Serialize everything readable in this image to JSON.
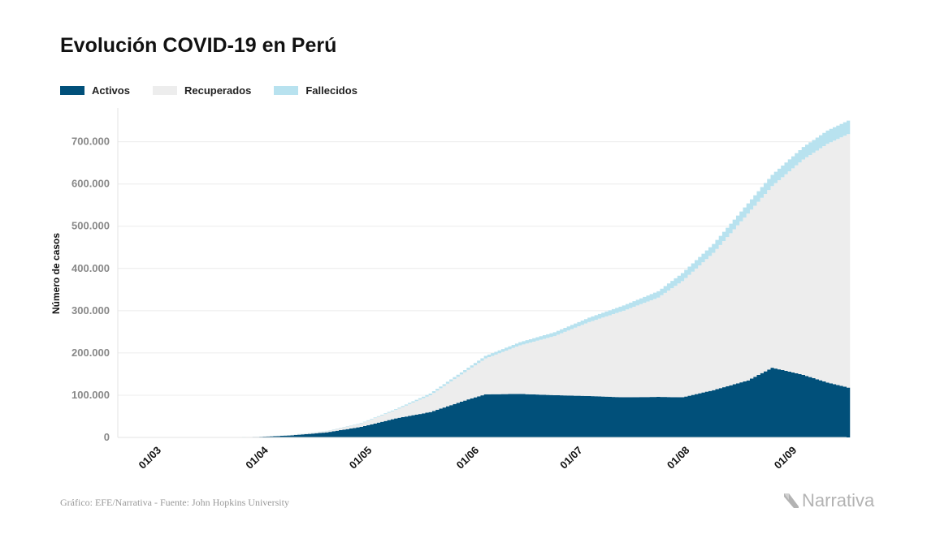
{
  "chart_data": {
    "type": "area",
    "title": "Evolución COVID-19 en Perú",
    "ylabel": "Número de casos",
    "xlabel": "",
    "ylim": [
      0,
      780000
    ],
    "yticks": [
      0,
      100000,
      200000,
      300000,
      400000,
      500000,
      600000,
      700000
    ],
    "ytick_labels": [
      "0",
      "100.000",
      "200.000",
      "300.000",
      "400.000",
      "500.000",
      "600.000",
      "700.000"
    ],
    "x_start_date": "2020-02-20",
    "x_end_date": "2020-09-18",
    "xtick_labels": [
      "01/03",
      "01/04",
      "01/05",
      "01/06",
      "01/07",
      "01/08",
      "01/09"
    ],
    "xtick_dates": [
      "2020-03-01",
      "2020-04-01",
      "2020-05-01",
      "2020-06-01",
      "2020-07-01",
      "2020-08-01",
      "2020-09-01"
    ],
    "stacked": true,
    "grid": "horizontal",
    "legend_position": "top-left",
    "series": [
      {
        "name": "Activos",
        "color": "#01507a",
        "x": [
          "2020-03-06",
          "2020-03-20",
          "2020-03-31",
          "2020-04-10",
          "2020-04-20",
          "2020-04-30",
          "2020-05-10",
          "2020-05-20",
          "2020-05-31",
          "2020-06-05",
          "2020-06-15",
          "2020-06-25",
          "2020-07-05",
          "2020-07-15",
          "2020-07-25",
          "2020-08-01",
          "2020-08-10",
          "2020-08-20",
          "2020-08-27",
          "2020-09-05",
          "2020-09-12",
          "2020-09-18"
        ],
        "values": [
          0,
          500,
          1200,
          5000,
          12000,
          25000,
          45000,
          60000,
          90000,
          102000,
          103000,
          100000,
          98000,
          95000,
          96000,
          95000,
          112000,
          135000,
          165000,
          148000,
          130000,
          118000
        ]
      },
      {
        "name": "Recuperados",
        "color": "#ededed",
        "x": [
          "2020-03-06",
          "2020-03-20",
          "2020-03-31",
          "2020-04-10",
          "2020-04-20",
          "2020-04-30",
          "2020-05-10",
          "2020-05-20",
          "2020-05-31",
          "2020-06-05",
          "2020-06-15",
          "2020-06-25",
          "2020-07-05",
          "2020-07-15",
          "2020-07-25",
          "2020-08-01",
          "2020-08-10",
          "2020-08-20",
          "2020-08-27",
          "2020-09-05",
          "2020-09-12",
          "2020-09-18"
        ],
        "values": [
          0,
          0,
          200,
          1000,
          3000,
          8000,
          20000,
          40000,
          70000,
          85000,
          115000,
          140000,
          175000,
          205000,
          235000,
          275000,
          325000,
          395000,
          430000,
          510000,
          565000,
          600000
        ]
      },
      {
        "name": "Fallecidos",
        "color": "#b8e2ef",
        "x": [
          "2020-03-06",
          "2020-03-20",
          "2020-03-31",
          "2020-04-10",
          "2020-04-20",
          "2020-04-30",
          "2020-05-10",
          "2020-05-20",
          "2020-05-31",
          "2020-06-05",
          "2020-06-15",
          "2020-06-25",
          "2020-07-05",
          "2020-07-15",
          "2020-07-25",
          "2020-08-01",
          "2020-08-10",
          "2020-08-20",
          "2020-08-27",
          "2020-09-05",
          "2020-09-12",
          "2020-09-18"
        ],
        "values": [
          0,
          0,
          50,
          200,
          500,
          1000,
          2000,
          4000,
          5000,
          6000,
          7500,
          9000,
          10500,
          12500,
          15000,
          19000,
          21000,
          24000,
          26500,
          29500,
          31500,
          32000
        ]
      }
    ]
  },
  "legend": {
    "items": [
      {
        "label": "Activos",
        "color": "#01507a"
      },
      {
        "label": "Recuperados",
        "color": "#ededed"
      },
      {
        "label": "Fallecidos",
        "color": "#b8e2ef"
      }
    ]
  },
  "footer": {
    "source": "Gráfico: EFE/Narrativa - Fuente: John Hopkins University",
    "brand": "Narrativa"
  }
}
